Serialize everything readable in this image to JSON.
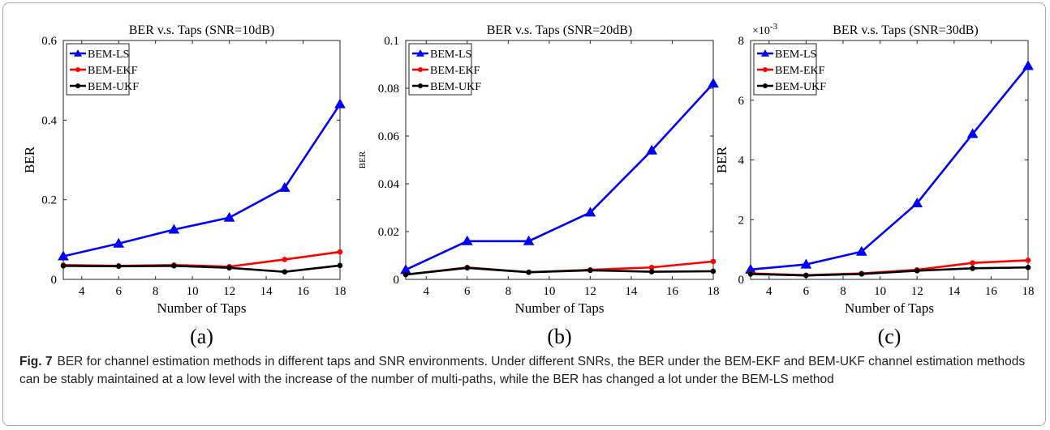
{
  "chart_data": [
    {
      "type": "line",
      "title": "BER v.s. Taps (SNR=10dB)",
      "xlabel": "Number of Taps",
      "ylabel": "BER",
      "panel_label": "(a)",
      "y_multiplier": "",
      "x": [
        3,
        6,
        9,
        12,
        15,
        18
      ],
      "xlim": [
        3,
        18
      ],
      "xticks": [
        "4",
        "6",
        "8",
        "10",
        "12",
        "14",
        "16",
        "18"
      ],
      "ylim": [
        0,
        0.6
      ],
      "yticks": [
        "0",
        "0.2",
        "0.4",
        "0.6"
      ],
      "legend_position": "top-left",
      "series": [
        {
          "name": "BEM-LS",
          "color": "#0000ff",
          "marker": "triangle",
          "values": [
            0.058,
            0.09,
            0.125,
            0.155,
            0.23,
            0.44
          ]
        },
        {
          "name": "BEM-EKF",
          "color": "#ff0000",
          "marker": "dot",
          "values": [
            0.036,
            0.034,
            0.036,
            0.032,
            0.05,
            0.069
          ]
        },
        {
          "name": "BEM-UKF",
          "color": "#000000",
          "marker": "dot",
          "values": [
            0.034,
            0.033,
            0.034,
            0.029,
            0.019,
            0.035
          ]
        }
      ]
    },
    {
      "type": "line",
      "title": "BER v.s. Taps (SNR=20dB)",
      "xlabel": "Number of Taps",
      "ylabel": "BER",
      "panel_label": "(b)",
      "y_multiplier": "",
      "x": [
        3,
        6,
        9,
        12,
        15,
        18
      ],
      "xlim": [
        3,
        18
      ],
      "xticks": [
        "4",
        "6",
        "8",
        "10",
        "12",
        "14",
        "16",
        "18"
      ],
      "ylim": [
        0,
        0.1
      ],
      "yticks": [
        "0",
        "0.02",
        "0.04",
        "0.06",
        "0.08",
        "0.1"
      ],
      "legend_position": "top-left",
      "series": [
        {
          "name": "BEM-LS",
          "color": "#0000ff",
          "marker": "triangle",
          "values": [
            0.004,
            0.016,
            0.016,
            0.028,
            0.054,
            0.082
          ]
        },
        {
          "name": "BEM-EKF",
          "color": "#ff0000",
          "marker": "dot",
          "values": [
            0.002,
            0.005,
            0.003,
            0.004,
            0.005,
            0.0075
          ]
        },
        {
          "name": "BEM-UKF",
          "color": "#000000",
          "marker": "dot",
          "values": [
            0.002,
            0.0048,
            0.003,
            0.0038,
            0.0032,
            0.0034
          ]
        }
      ]
    },
    {
      "type": "line",
      "title": "BER v.s. Taps (SNR=30dB)",
      "xlabel": "Number of Taps",
      "ylabel": "BER",
      "panel_label": "(c)",
      "y_multiplier": "×10",
      "y_multiplier_exp": "-3",
      "x": [
        3,
        6,
        9,
        12,
        15,
        18
      ],
      "xlim": [
        3,
        18
      ],
      "xticks": [
        "4",
        "6",
        "8",
        "10",
        "12",
        "14",
        "16",
        "18"
      ],
      "ylim": [
        0,
        8
      ],
      "yticks": [
        "0",
        "2",
        "4",
        "6",
        "8"
      ],
      "legend_position": "top-left",
      "series": [
        {
          "name": "BEM-LS",
          "color": "#0000ff",
          "marker": "triangle",
          "values": [
            0.33,
            0.5,
            0.93,
            2.55,
            4.87,
            7.15
          ]
        },
        {
          "name": "BEM-EKF",
          "color": "#ff0000",
          "marker": "dot",
          "values": [
            0.2,
            0.14,
            0.2,
            0.32,
            0.55,
            0.64
          ]
        },
        {
          "name": "BEM-UKF",
          "color": "#000000",
          "marker": "dot",
          "values": [
            0.18,
            0.13,
            0.18,
            0.29,
            0.37,
            0.4
          ]
        }
      ]
    }
  ],
  "caption": {
    "label": "Fig. 7",
    "text": "BER for channel estimation methods in different taps and SNR environments. Under different SNRs, the BER under the BEM-EKF and BEM-UKF channel estimation methods can be stably maintained at a low level with the increase of the number of multi-paths, while the BER has changed a lot under the BEM-LS method"
  }
}
